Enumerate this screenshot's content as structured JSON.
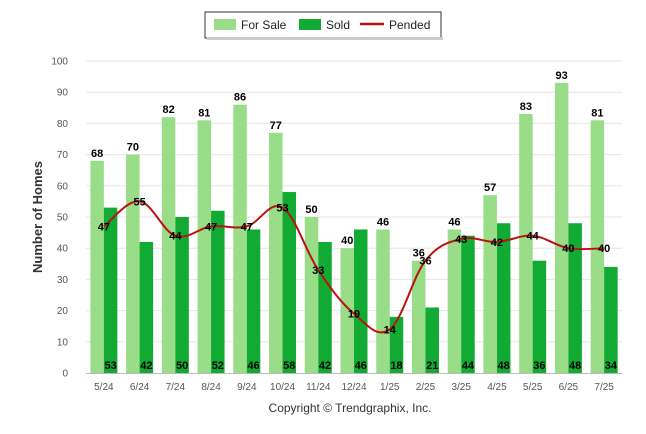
{
  "chart_data": {
    "type": "bar",
    "categories": [
      "5/24",
      "6/24",
      "7/24",
      "8/24",
      "9/24",
      "10/24",
      "11/24",
      "12/24",
      "1/25",
      "2/25",
      "3/25",
      "4/25",
      "5/25",
      "6/25",
      "7/25"
    ],
    "series": [
      {
        "name": "For Sale",
        "type": "bar",
        "color": "#99dd88",
        "values": [
          68,
          70,
          82,
          81,
          86,
          77,
          50,
          40,
          46,
          36,
          46,
          57,
          83,
          93,
          81
        ]
      },
      {
        "name": "Sold",
        "type": "bar",
        "color": "#11aa33",
        "values": [
          53,
          42,
          50,
          52,
          46,
          58,
          42,
          46,
          18,
          21,
          44,
          48,
          36,
          48,
          34
        ]
      },
      {
        "name": "Pended",
        "type": "line",
        "color": "#bb1111",
        "values": [
          47,
          55,
          44,
          47,
          47,
          53,
          33,
          19,
          14,
          36,
          43,
          42,
          44,
          40,
          40
        ]
      }
    ],
    "ylabel": "Number of Homes",
    "ylim": [
      0,
      100
    ],
    "yticks": [
      0,
      10,
      20,
      30,
      40,
      50,
      60,
      70,
      80,
      90,
      100
    ],
    "legend": "top-center",
    "grid": true
  },
  "copyright": "Copyright © Trendgraphix, Inc."
}
